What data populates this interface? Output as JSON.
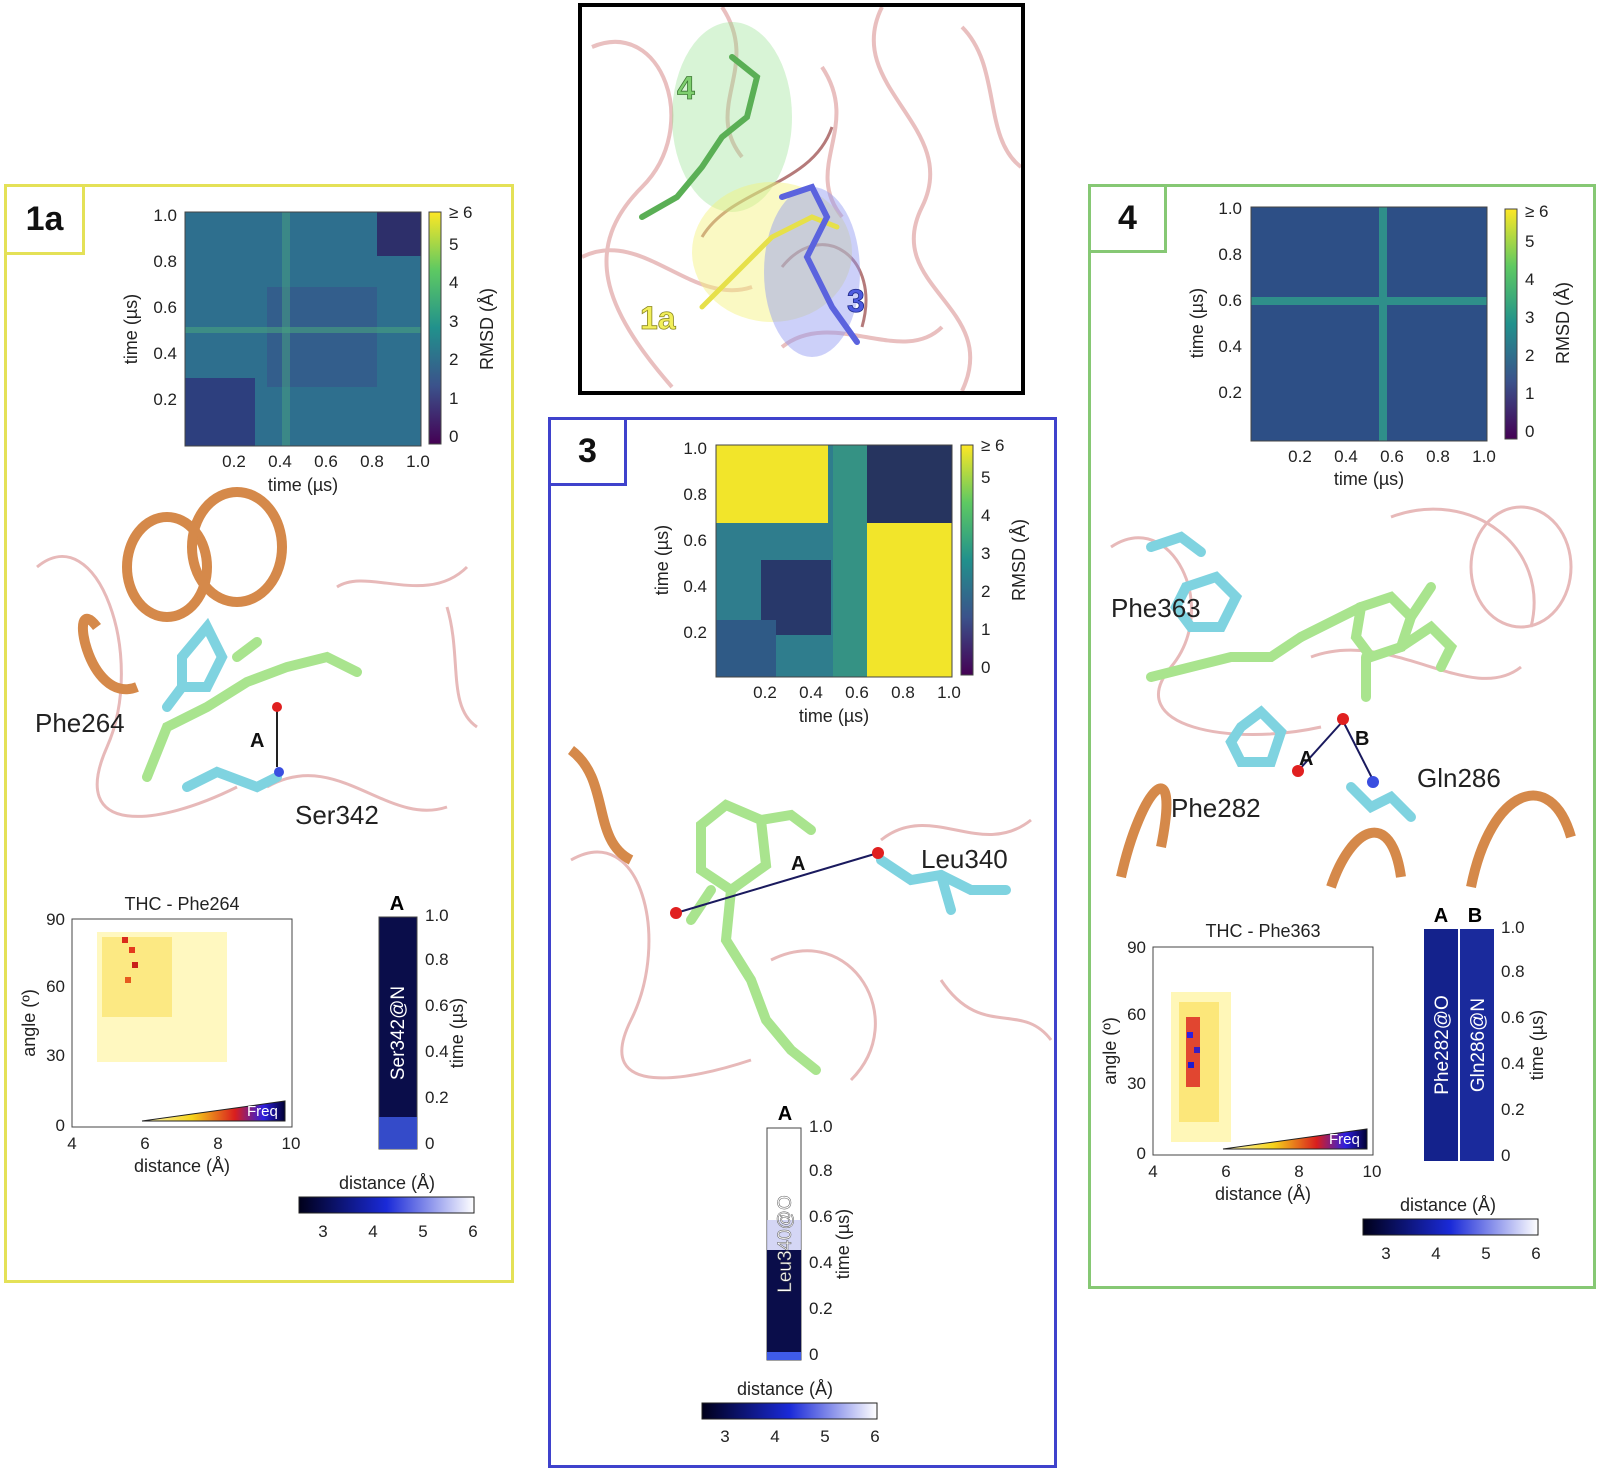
{
  "inset": {
    "labels": {
      "p4": "4",
      "p1a": "1a",
      "p3": "3"
    },
    "colors": {
      "p4": "#7fcf6f",
      "p1a": "#f2ef5a",
      "p3": "#4d5be0"
    }
  },
  "panels": [
    {
      "id": "1a",
      "tag": "1a",
      "border": "#e4e157",
      "rmsd": {
        "ticks": [
          "0.2",
          "0.4",
          "0.6",
          "0.8",
          "1.0"
        ],
        "xlabel": "time (µs)",
        "ylabel": "time (µs)",
        "cbar_label": "RMSD (Å)",
        "cbar_ticks": [
          "0",
          "1",
          "2",
          "3",
          "4",
          "5",
          "≥ 6"
        ]
      },
      "residues": [
        "Phe264",
        "Ser342"
      ],
      "bond_label": "A",
      "hist": {
        "title": "THC - Phe264",
        "xlabel": "distance (Å)",
        "ylabel": "angle (º)",
        "xticks": [
          "4",
          "6",
          "8",
          "10"
        ],
        "yticks": [
          "0",
          "30",
          "60",
          "90"
        ],
        "freq": "Freq"
      },
      "strip": {
        "letters": [
          "A"
        ],
        "labels": [
          "Ser342@N"
        ],
        "time_label": "time (µs)",
        "time_ticks": [
          "0",
          "0.2",
          "0.4",
          "0.6",
          "0.8",
          "1.0"
        ]
      },
      "dist_cbar": {
        "label": "distance (Å)",
        "ticks": [
          "3",
          "4",
          "5",
          "6"
        ]
      }
    },
    {
      "id": "3",
      "tag": "3",
      "border": "#3f42cc",
      "rmsd": {
        "ticks": [
          "0.2",
          "0.4",
          "0.6",
          "0.8",
          "1.0"
        ],
        "xlabel": "time (µs)",
        "ylabel": "time (µs)",
        "cbar_label": "RMSD (Å)",
        "cbar_ticks": [
          "0",
          "1",
          "2",
          "3",
          "4",
          "5",
          "≥ 6"
        ]
      },
      "residues": [
        "Leu340"
      ],
      "bond_label": "A",
      "strip": {
        "letters": [
          "A"
        ],
        "labels": [
          "Leu340@O"
        ],
        "time_label": "time (µs)",
        "time_ticks": [
          "0",
          "0.2",
          "0.4",
          "0.6",
          "0.8",
          "1.0"
        ]
      },
      "dist_cbar": {
        "label": "distance (Å)",
        "ticks": [
          "3",
          "4",
          "5",
          "6"
        ]
      }
    },
    {
      "id": "4",
      "tag": "4",
      "border": "#86c874",
      "rmsd": {
        "ticks": [
          "0.2",
          "0.4",
          "0.6",
          "0.8",
          "1.0"
        ],
        "xlabel": "time (µs)",
        "ylabel": "time (µs)",
        "cbar_label": "RMSD (Å)",
        "cbar_ticks": [
          "0",
          "1",
          "2",
          "3",
          "4",
          "5",
          "≥ 6"
        ]
      },
      "residues": [
        "Phe363",
        "Phe282",
        "Gln286"
      ],
      "bond_labels": [
        "A",
        "B"
      ],
      "hist": {
        "title": "THC - Phe363",
        "xlabel": "distance (Å)",
        "ylabel": "angle (º)",
        "xticks": [
          "4",
          "6",
          "8",
          "10"
        ],
        "yticks": [
          "0",
          "30",
          "60",
          "90"
        ],
        "freq": "Freq"
      },
      "strip": {
        "letters": [
          "A",
          "B"
        ],
        "labels": [
          "Phe282@O",
          "Gln286@N"
        ],
        "time_label": "time (µs)",
        "time_ticks": [
          "0",
          "0.2",
          "0.4",
          "0.6",
          "0.8",
          "1.0"
        ]
      },
      "dist_cbar": {
        "label": "distance (Å)",
        "ticks": [
          "3",
          "4",
          "5",
          "6"
        ]
      }
    }
  ]
}
